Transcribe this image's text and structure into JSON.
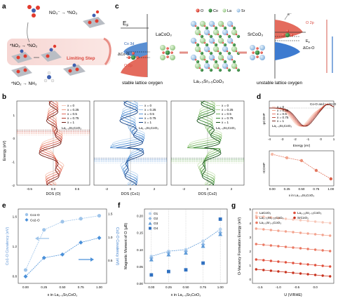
{
  "panel_letters": [
    "a",
    "b",
    "c",
    "d",
    "e",
    "f",
    "g"
  ],
  "panel_a": {
    "label_no3": "NO₃⁻ → *NO₃",
    "label_no3_no2": "*NO₃ → *NO₂",
    "limiting_step": "Limiting Step",
    "label_no2_nh3": "*NO₂ → NH₃"
  },
  "panel_c": {
    "ef": "E",
    "ef_sub": "F",
    "lacoo3": "LaCoO₃",
    "srcoo3": "SrCoO₃",
    "mixed": "La₀.₅Sr₀.₅CoO₃",
    "co3d": "Co 3d",
    "o2p_left": "O 2p",
    "o2p_right": "O 2p",
    "delta_left": "ΔCo-O",
    "delta_right": "ΔCo-O",
    "ef_right": "E",
    "ef_right_sub": "F",
    "electron": "e⁻",
    "stable": "stable lattice oxygen",
    "unstable": "unstable lattice oxygen",
    "legend": [
      "O",
      "Co",
      "La",
      "Sr"
    ],
    "legend_colors": [
      "#e23b2e",
      "#2a7a3a",
      "#9ccf8c",
      "#8fb7e0"
    ]
  },
  "panel_b": {
    "ylabel": "Energy (eV)",
    "xlabels": [
      "DOS (O)",
      "DOS (Co1)",
      "DOS (Co2)"
    ],
    "legend_x": [
      "x = 0",
      "x = 0.25",
      "x = 0.5",
      "x = 0.75",
      "x = 1"
    ],
    "legend_formula": "La₁₋ₓSrₓCoO₃",
    "yticks": [
      "1",
      "0",
      "-1",
      "-2"
    ],
    "xticks_o": [
      "-0.5",
      "0.0",
      "0.5"
    ],
    "xticks_co1": [
      "-2",
      "0",
      "2"
    ],
    "xticks_co2": [
      "-2",
      "0",
      "2"
    ]
  },
  "panel_d": {
    "ylabel_top": "-pCOHP",
    "xlabel_top": "Energy (eV)",
    "annotation": "Co-O and La/Sr-O",
    "legend_x": [
      "x = 0",
      "x = 0.25",
      "x = 0.5",
      "x = 0.75",
      "x = 1"
    ],
    "legend_formula": "La₁₋ₓSrₓCoO₃",
    "xticks_top": [
      "-4",
      "-3",
      "-2",
      "-1",
      "0",
      "1"
    ],
    "ylabel_bottom": "-ICOHP",
    "xlabel_bottom": "x in La₁₋ₓSrₓCoO₃",
    "xticks_bottom": [
      "0.00",
      "0.25",
      "0.50",
      "0.75",
      "1.00"
    ]
  },
  "panel_e": {
    "ylabel_left": "Co1-O Covalency (eV)",
    "ylabel_right": "Co2-O Covalency (eV)",
    "xlabel": "x in La₁₋ₓSrₓCoO₃",
    "legend": [
      "Co1-O",
      "Co2-O"
    ],
    "yticks_left": [
      "0.8",
      "1.2",
      "1.6"
    ],
    "yticks_right": [
      "0.5",
      "1.0",
      "1.5"
    ],
    "xticks": [
      "0.00",
      "0.25",
      "0.50",
      "0.75",
      "1.00"
    ]
  },
  "panel_f": {
    "ylabel": "Magnetic Moment of O (μB)",
    "xlabel": "x in La₁₋ₓSrₓCoO₃",
    "legend": [
      "O1",
      "O2",
      "O3",
      "O4"
    ],
    "yticks": [
      "0.00",
      "0.05",
      "0.10",
      "0.15",
      "0.20"
    ],
    "xticks": [
      "0.00",
      "0.25",
      "0.50",
      "0.75",
      "1.00"
    ]
  },
  "panel_g": {
    "ylabel": "O-Vacancy Formation Energy (eV)",
    "xlabel": "U (V/RHE)",
    "legend": [
      "LaCoO₃",
      "La₀.₇₅Sr₀.₂₅CoO₃",
      "La₀.₅Sr₀.₅CoO₃",
      "La₀.₂₅Sr₀.₇₅CoO₃",
      "SrCoO₃"
    ],
    "yticks": [
      "0",
      "1",
      "2",
      "3",
      "4",
      "5"
    ],
    "xticks": [
      "-1.5",
      "-1.0",
      "-0.5",
      "0.0"
    ]
  },
  "chart_data": [
    {
      "type": "line",
      "panel": "d-bottom",
      "x": [
        0.0,
        0.25,
        0.5,
        0.75,
        1.0
      ],
      "series": [
        {
          "values": [
            0.475,
            0.45,
            0.43,
            0.36,
            0.3
          ]
        }
      ],
      "xlabel": "x in La₁₋ₓSrₓCoO₃",
      "ylabel": "-ICOHP",
      "xlim": [
        -0.05,
        1.05
      ],
      "ylim": [
        0.25,
        0.5
      ],
      "color": "#e3775f"
    },
    {
      "type": "line",
      "panel": "e",
      "x": [
        0.0,
        0.25,
        0.5,
        0.75,
        1.0
      ],
      "series": [
        {
          "name": "Co1-O",
          "values": [
            0.88,
            1.42,
            1.53,
            1.57,
            1.61
          ]
        },
        {
          "name": "Co2-O",
          "values": [
            0.15,
            0.55,
            0.62,
            0.88,
            0.98
          ]
        }
      ],
      "ylabel": "Co1-O Covalency (eV)",
      "ylabel_right": "Co2-O Covalency (eV)",
      "ylim_left": [
        0.7,
        1.7
      ],
      "ylim_right": [
        0.0,
        1.6
      ],
      "xlim": [
        -0.1,
        1.1
      ],
      "colors": [
        "#9ec4ea",
        "#4a90d9"
      ]
    },
    {
      "type": "scatter",
      "panel": "f",
      "x": [
        0.0,
        0.25,
        0.5,
        0.75,
        1.0
      ],
      "series": [
        {
          "name": "O1",
          "values": [
            0.08,
            0.095,
            0.1,
            0.125,
            0.16
          ]
        },
        {
          "name": "O2",
          "values": [
            0.075,
            0.09,
            0.095,
            0.115,
            0.15
          ]
        },
        {
          "name": "O3",
          "values": [
            0.07,
            0.085,
            0.09,
            0.11,
            0.145
          ]
        },
        {
          "name": "O4",
          "values": [
            0.025,
            0.035,
            0.04,
            0.06,
            0.19
          ]
        }
      ],
      "ylabel": "Magnetic Moment of O (μB)",
      "ylim": [
        0.0,
        0.22
      ],
      "xlim": [
        -0.1,
        1.1
      ],
      "colors": [
        "#b8d4f0",
        "#8fb8e4",
        "#5f9bd8",
        "#2f70c0"
      ]
    },
    {
      "type": "line",
      "panel": "g",
      "x": [
        -1.6,
        -1.4,
        -1.2,
        -1.0,
        -0.8,
        -0.6,
        -0.4,
        -0.2,
        0.0,
        0.2,
        0.4
      ],
      "series": [
        {
          "name": "LaCoO₃",
          "intercept": 4.1,
          "slope": -0.25
        },
        {
          "name": "La₀.₇₅Sr₀.₂₅CoO₃",
          "intercept": 3.2,
          "slope": -0.25
        },
        {
          "name": "La₀.₅Sr₀.₅CoO₃",
          "intercept": 2.1,
          "slope": -0.25
        },
        {
          "name": "La₀.₂₅Sr₀.₇₅CoO₃",
          "intercept": 1.0,
          "slope": -0.25
        },
        {
          "name": "SrCoO₃",
          "intercept": 0.3,
          "slope": -0.25
        }
      ],
      "ylabel": "O-Vacancy Formation Energy (eV)",
      "xlabel": "U (V/RHE)",
      "xlim": [
        -1.7,
        0.5
      ],
      "ylim": [
        -0.3,
        5.0
      ],
      "colors": [
        "#f7c7b8",
        "#f3a38e",
        "#ea7862",
        "#e0503c",
        "#c8321e"
      ]
    }
  ]
}
